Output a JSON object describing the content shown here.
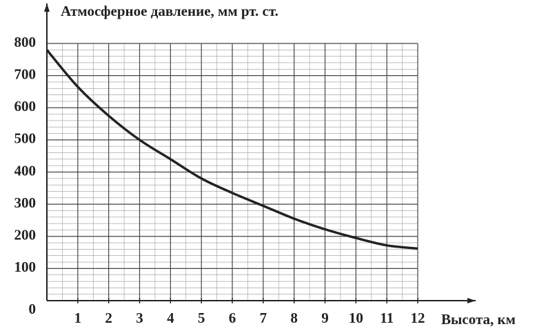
{
  "chart_data": {
    "type": "line",
    "y_label": "Атмосферное давление, мм рт. ст.",
    "x_label": "Высота, км",
    "x": [
      0,
      1,
      2,
      3,
      4,
      5,
      6,
      7,
      8,
      9,
      10,
      11,
      12
    ],
    "series": [
      {
        "name": "Атмосферное давление",
        "color": "#222222",
        "values": [
          780,
          665,
          575,
          500,
          440,
          380,
          335,
          295,
          255,
          222,
          195,
          172,
          162
        ]
      }
    ],
    "xlim": [
      0,
      12
    ],
    "ylim": [
      0,
      800
    ],
    "xticks": [
      1,
      2,
      3,
      4,
      5,
      6,
      7,
      8,
      9,
      10,
      11,
      12
    ],
    "yticks": [
      0,
      100,
      200,
      300,
      400,
      500,
      600,
      700,
      800
    ],
    "grid": true
  }
}
